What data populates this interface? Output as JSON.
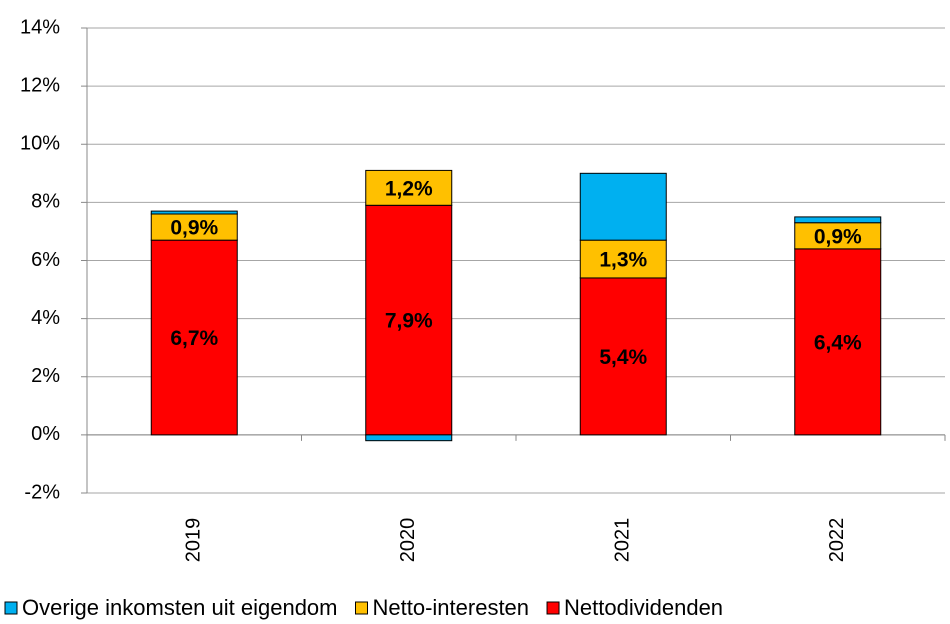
{
  "chart_data": {
    "type": "stacked-bar",
    "categories": [
      "2019",
      "2020",
      "2021",
      "2022"
    ],
    "series": [
      {
        "name": "Overige inkomsten uit eigendom",
        "color": "#00b0f0",
        "values": [
          0.1,
          -0.2,
          2.3,
          0.2
        ]
      },
      {
        "name": "Netto-interesten",
        "color": "#ffc000",
        "values": [
          0.9,
          1.2,
          1.3,
          0.9
        ],
        "value_labels": [
          "0,9%",
          "1,2%",
          "1,3%",
          "0,9%"
        ]
      },
      {
        "name": "Nettodividenden",
        "color": "#ff0000",
        "values": [
          6.7,
          7.9,
          5.4,
          6.4
        ],
        "value_labels": [
          "6,7%",
          "7,9%",
          "5,4%",
          "6,4%"
        ]
      }
    ],
    "ylim": [
      -2,
      14
    ],
    "yticks": [
      {
        "value": -2,
        "label": "-2%"
      },
      {
        "value": 0,
        "label": "0%"
      },
      {
        "value": 2,
        "label": "2%"
      },
      {
        "value": 4,
        "label": "4%"
      },
      {
        "value": 6,
        "label": "6%"
      },
      {
        "value": 8,
        "label": "8%"
      },
      {
        "value": 10,
        "label": "10%"
      },
      {
        "value": 12,
        "label": "12%"
      },
      {
        "value": 14,
        "label": "14%"
      }
    ],
    "grid": true
  }
}
